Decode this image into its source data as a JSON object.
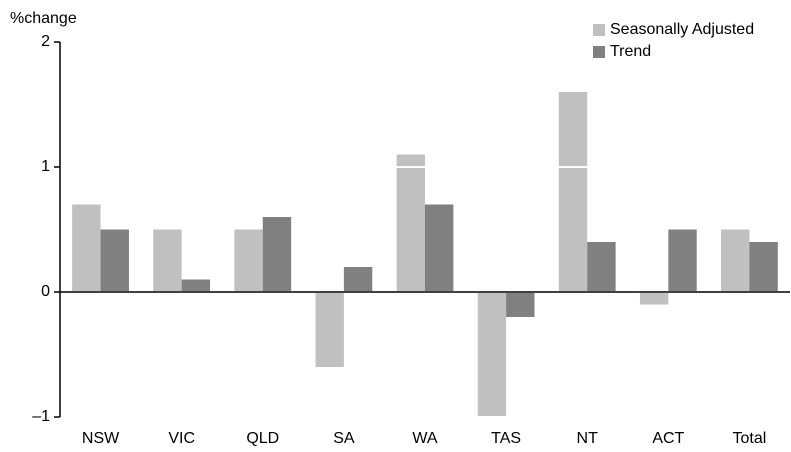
{
  "chart_data": {
    "type": "bar",
    "y_label": "%change",
    "categories": [
      "NSW",
      "VIC",
      "QLD",
      "SA",
      "WA",
      "TAS",
      "NT",
      "ACT",
      "Total"
    ],
    "series": [
      {
        "name": "Seasonally Adjusted",
        "color": "#c0c0c0",
        "values": [
          0.7,
          0.5,
          0.5,
          -0.6,
          1.1,
          -1.0,
          1.6,
          -0.1,
          0.5
        ]
      },
      {
        "name": "Trend",
        "color": "#808080",
        "values": [
          0.5,
          0.1,
          0.6,
          0.2,
          0.7,
          -0.2,
          0.4,
          0.5,
          0.4
        ]
      }
    ],
    "ylim": [
      -1,
      2
    ],
    "yticks": [
      {
        "value": -1,
        "label": "–1"
      },
      0,
      1,
      2
    ],
    "grid": true,
    "legend": "top-right"
  }
}
